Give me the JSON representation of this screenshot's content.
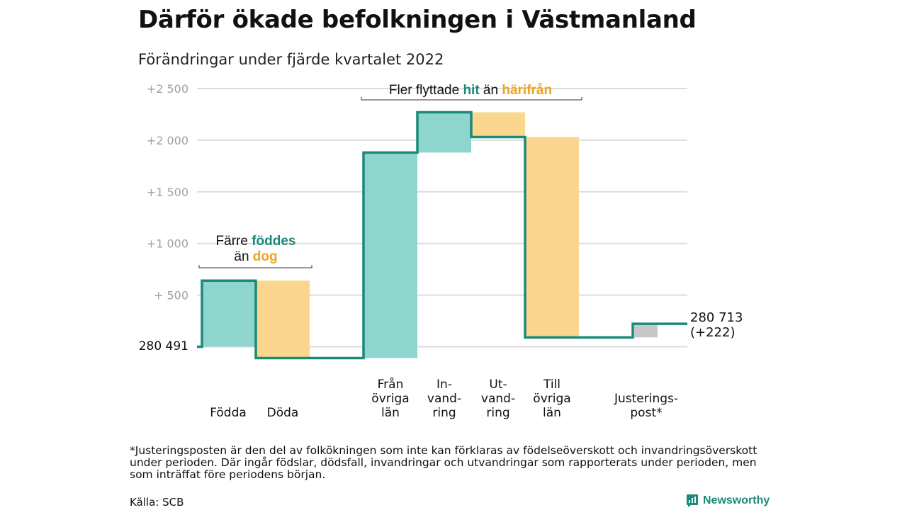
{
  "title": "Därför ökade befolkningen i Västmanland",
  "subtitle": "Förändringar under fjärde kvartalet 2022",
  "footnote": "*Justeringsposten är den del av folkökningen som inte kan förklaras av födelseöverskott och invandringsöverskott under perioden. Där ingår födslar, dödsfall, invandringar och utvandringar som rapporterats under perioden, men som inträffat före periodens början.",
  "source": "Källa: SCB",
  "brand": "Newsworthy",
  "colors": {
    "increase": "#8ed5cd",
    "decrease": "#fad68e",
    "line": "#1a8a7a",
    "adjustment": "#c8c8c8",
    "teal_text": "#1a8a7a",
    "orange_text": "#f0a21f"
  },
  "annotations": {
    "births": {
      "line1": "Färre",
      "highlight1": "föddes",
      "line2": "än",
      "highlight2": "dog"
    },
    "migration": {
      "prefix": "Fler flyttade",
      "highlight1": "hit",
      "middle": "än",
      "highlight2": "härifrån"
    }
  },
  "chart_data": {
    "type": "waterfall",
    "title": "Därför ökade befolkningen i Västmanland",
    "subtitle": "Förändringar under fjärde kvartalet 2022",
    "start_label": "280 491",
    "end_label": "280 713",
    "end_change_label": "(+222)",
    "yticks": [
      {
        "value": 500,
        "label": "+ 500"
      },
      {
        "value": 1000,
        "label": "+1 000"
      },
      {
        "value": 1500,
        "label": "+1 500"
      },
      {
        "value": 2000,
        "label": "+2 000"
      },
      {
        "value": 2500,
        "label": "+2 500"
      }
    ],
    "ylim": [
      -100,
      2550
    ],
    "categories": [
      {
        "label": [
          "Födda"
        ],
        "start": 0,
        "end": 640,
        "kind": "increase"
      },
      {
        "label": [
          "Döda"
        ],
        "start": 640,
        "end": -110,
        "kind": "decrease"
      },
      {
        "label": [
          "Från",
          "övriga",
          "län"
        ],
        "start": -110,
        "end": 1880,
        "kind": "increase"
      },
      {
        "label": [
          "In-",
          "vand-",
          "ring"
        ],
        "start": 1880,
        "end": 2270,
        "kind": "increase"
      },
      {
        "label": [
          "Ut-",
          "vand-",
          "ring"
        ],
        "start": 2270,
        "end": 2030,
        "kind": "decrease"
      },
      {
        "label": [
          "Till",
          "övriga",
          "län"
        ],
        "start": 2030,
        "end": 90,
        "kind": "decrease"
      },
      {
        "label": [
          "Justerings-",
          "post*"
        ],
        "start": 90,
        "end": 222,
        "kind": "adjustment"
      }
    ]
  }
}
